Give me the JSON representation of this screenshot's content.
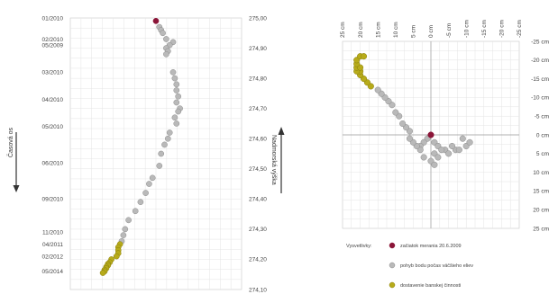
{
  "colors": {
    "grid": "#e4e4e4",
    "frame": "#c8c8c8",
    "point_gray": "#b9b9b9",
    "point_gray_stroke": "#8c8c8c",
    "point_olive": "#b7ab1a",
    "point_olive_stroke": "#8a7f0c",
    "point_start": "#8b1538",
    "arrow": "#333333"
  },
  "chart_data": [
    {
      "type": "scatter",
      "y_left_label": "Časová os",
      "y_right_label": "Nadmorská výška",
      "y_right_ticks": [
        "275,00",
        "274,90",
        "274,80",
        "274,70",
        "274,60",
        "274,50",
        "274,40",
        "274,30",
        "274,20",
        "274,10"
      ],
      "ylim": [
        274.1,
        275.0
      ],
      "date_labels": [
        {
          "label": "01/2010",
          "y": 275.0
        },
        {
          "label": "02/2010",
          "y": 274.93
        },
        {
          "label": "05/2009",
          "y": 274.91
        },
        {
          "label": "03/2010",
          "y": 274.82
        },
        {
          "label": "04/2010",
          "y": 274.73
        },
        {
          "label": "05/2010",
          "y": 274.64
        },
        {
          "label": "06/2010",
          "y": 274.52
        },
        {
          "label": "09/2010",
          "y": 274.4
        },
        {
          "label": "11/2010",
          "y": 274.29
        },
        {
          "label": "04/2011",
          "y": 274.25
        },
        {
          "label": "02/2012",
          "y": 274.21
        },
        {
          "label": "05/2014",
          "y": 274.16
        }
      ],
      "series": [
        {
          "color_key": "start",
          "points": [
            [
              0.5,
              274.99
            ]
          ]
        },
        {
          "color_key": "gray",
          "points": [
            [
              0.52,
              274.97
            ],
            [
              0.53,
              274.96
            ],
            [
              0.54,
              274.95
            ],
            [
              0.56,
              274.93
            ],
            [
              0.6,
              274.92
            ],
            [
              0.58,
              274.91
            ],
            [
              0.56,
              274.9
            ],
            [
              0.57,
              274.89
            ],
            [
              0.56,
              274.88
            ],
            [
              0.6,
              274.82
            ],
            [
              0.61,
              274.8
            ],
            [
              0.62,
              274.78
            ],
            [
              0.62,
              274.76
            ],
            [
              0.63,
              274.74
            ],
            [
              0.62,
              274.72
            ],
            [
              0.64,
              274.7
            ],
            [
              0.63,
              274.69
            ],
            [
              0.61,
              274.67
            ],
            [
              0.62,
              274.65
            ],
            [
              0.58,
              274.62
            ],
            [
              0.57,
              274.6
            ],
            [
              0.55,
              274.58
            ],
            [
              0.53,
              274.55
            ],
            [
              0.52,
              274.51
            ],
            [
              0.48,
              274.47
            ],
            [
              0.46,
              274.45
            ],
            [
              0.44,
              274.42
            ],
            [
              0.41,
              274.39
            ],
            [
              0.38,
              274.36
            ],
            [
              0.34,
              274.33
            ],
            [
              0.32,
              274.3
            ],
            [
              0.31,
              274.28
            ],
            [
              0.3,
              274.26
            ]
          ]
        },
        {
          "color_key": "olive",
          "points": [
            [
              0.29,
              274.25
            ],
            [
              0.28,
              274.24
            ],
            [
              0.28,
              274.23
            ],
            [
              0.28,
              274.22
            ],
            [
              0.27,
              274.21
            ],
            [
              0.24,
              274.2
            ],
            [
              0.23,
              274.19
            ],
            [
              0.22,
              274.185
            ],
            [
              0.22,
              274.18
            ],
            [
              0.21,
              274.175
            ],
            [
              0.21,
              274.17
            ],
            [
              0.2,
              274.165
            ],
            [
              0.2,
              274.16
            ],
            [
              0.19,
              274.155
            ]
          ]
        }
      ]
    },
    {
      "type": "scatter",
      "x_ticks": [
        "25 cm",
        "20 cm",
        "15 cm",
        "10 cm",
        "5 cm",
        "0 cm",
        "-5 cm",
        "-10 cm",
        "-15 cm",
        "-20 cm",
        "-25 cm"
      ],
      "x_values": [
        25,
        20,
        15,
        10,
        5,
        0,
        -5,
        -10,
        -15,
        -20,
        -25
      ],
      "y_ticks": [
        "-25 cm",
        "-20 cm",
        "-15 cm",
        "-10 cm",
        "-5 cm",
        "0 cm",
        "5 cm",
        "10 cm",
        "15 cm",
        "20 cm",
        "25 cm"
      ],
      "y_values": [
        -25,
        -20,
        -15,
        -10,
        -5,
        0,
        5,
        10,
        15,
        20,
        25
      ],
      "xlim": [
        25,
        -25
      ],
      "ylim": [
        -25,
        25
      ],
      "series": [
        {
          "color_key": "start",
          "points": [
            [
              0,
              0
            ]
          ]
        },
        {
          "color_key": "gray",
          "points": [
            [
              1,
              1
            ],
            [
              2,
              2
            ],
            [
              3,
              3
            ],
            [
              -1,
              2
            ],
            [
              -2,
              3
            ],
            [
              -4,
              4
            ],
            [
              -5,
              5
            ],
            [
              -7,
              4
            ],
            [
              -8,
              4
            ],
            [
              -10,
              3
            ],
            [
              -11,
              2
            ],
            [
              -9,
              1
            ],
            [
              -6,
              3
            ],
            [
              -3,
              4
            ],
            [
              -1,
              5
            ],
            [
              -2,
              6
            ],
            [
              0,
              7
            ],
            [
              -1,
              8
            ],
            [
              2,
              6
            ],
            [
              3,
              4
            ],
            [
              4,
              3
            ],
            [
              5,
              2
            ],
            [
              6,
              1
            ],
            [
              6,
              -1
            ],
            [
              7,
              -2
            ],
            [
              8,
              -3
            ],
            [
              9,
              -5
            ],
            [
              10,
              -6
            ],
            [
              11,
              -8
            ],
            [
              12,
              -9
            ],
            [
              13,
              -10
            ],
            [
              14,
              -11
            ],
            [
              15,
              -12
            ]
          ]
        },
        {
          "color_key": "olive",
          "points": [
            [
              17,
              -13
            ],
            [
              18,
              -14
            ],
            [
              19,
              -15
            ],
            [
              20,
              -16
            ],
            [
              20,
              -17
            ],
            [
              21,
              -17
            ],
            [
              21,
              -18
            ],
            [
              20,
              -18
            ],
            [
              21,
              -19
            ],
            [
              21,
              -20
            ],
            [
              20,
              -21
            ],
            [
              19,
              -21
            ]
          ]
        }
      ]
    }
  ],
  "legend": {
    "title": "Vysvetlivky:",
    "items": [
      {
        "label": "začiatok merania 20.6.2009",
        "color_key": "start"
      },
      {
        "label": "pohyb bodu počas väčšieho eliev",
        "color_key": "gray"
      },
      {
        "label": "dostavenie banskej činnosti",
        "color_key": "olive"
      }
    ]
  }
}
